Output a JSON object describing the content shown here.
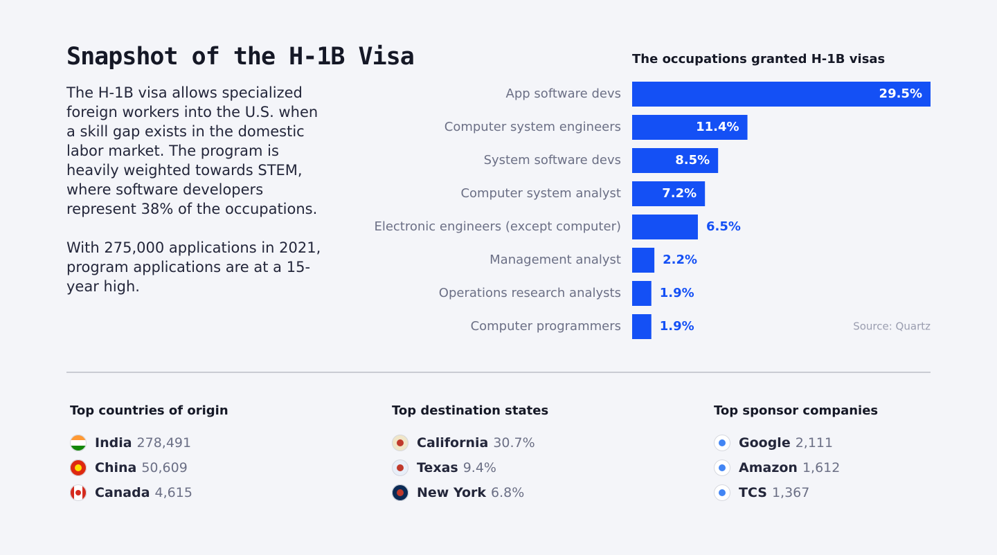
{
  "header": {
    "title": "Snapshot of the H-1B Visa"
  },
  "intro": {
    "paragraphs": [
      "The H-1B visa allows specialized foreign workers into the U.S. when a skill gap exists in the domestic labor market. The program is heavily weighted towards STEM, where software developers represent 38% of the occupations.",
      "With 275,000 applications in 2021, program applications are at a 15-year high."
    ]
  },
  "chart_data": {
    "type": "hbar",
    "title": "The occupations granted H-1B visas",
    "categories": [
      "App software devs",
      "Computer system engineers",
      "System software devs",
      "Computer system analyst",
      "Electronic engineers (except computer)",
      "Management analyst",
      "Operations research analysts",
      "Computer programmers"
    ],
    "values": [
      29.5,
      11.4,
      8.5,
      7.2,
      6.5,
      2.2,
      1.9,
      1.9
    ],
    "value_labels": [
      "29.5%",
      "11.4%",
      "8.5%",
      "7.2%",
      "6.5%",
      "2.2%",
      "1.9%",
      "1.9%"
    ],
    "color": "#1450f5",
    "source": "Source: Quartz"
  },
  "lists": [
    {
      "title": "Top countries of origin",
      "items": [
        {
          "name": "India",
          "value": "278,491"
        },
        {
          "name": "China",
          "value": "50,609"
        },
        {
          "name": "Canada",
          "value": "4,615"
        }
      ]
    },
    {
      "title": "Top destination states",
      "items": [
        {
          "name": "California",
          "value": "30.7%"
        },
        {
          "name": "Texas",
          "value": "9.4%"
        },
        {
          "name": "New York",
          "value": "6.8%"
        }
      ]
    },
    {
      "title": "Top sponsor companies",
      "items": [
        {
          "name": "Google",
          "value": "2,111"
        },
        {
          "name": "Amazon",
          "value": "1,612"
        },
        {
          "name": "TCS",
          "value": "1,367"
        }
      ]
    }
  ]
}
